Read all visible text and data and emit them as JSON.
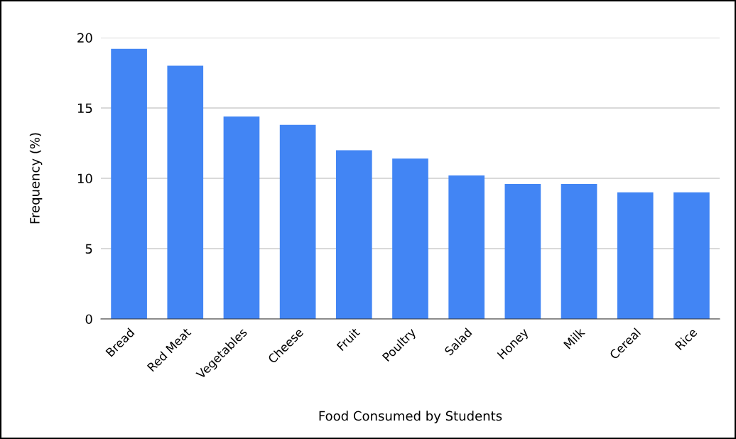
{
  "chart_data": {
    "type": "bar",
    "xlabel": "Food Consumed by Students",
    "ylabel": "Frequency (%)",
    "categories": [
      "Bread",
      "Red Meat",
      "Vegetables",
      "Cheese",
      "Fruit",
      "Poultry",
      "Salad",
      "Honey",
      "Milk",
      "Cereal",
      "Rice"
    ],
    "values": [
      19.2,
      18.0,
      14.4,
      13.8,
      12.0,
      11.4,
      10.2,
      9.6,
      9.6,
      9.0,
      9.0
    ],
    "color": "#4285f4",
    "ylim": [
      0,
      20
    ],
    "yticks": [
      0,
      5,
      10,
      15,
      20
    ],
    "grid": "y",
    "legend": false
  }
}
